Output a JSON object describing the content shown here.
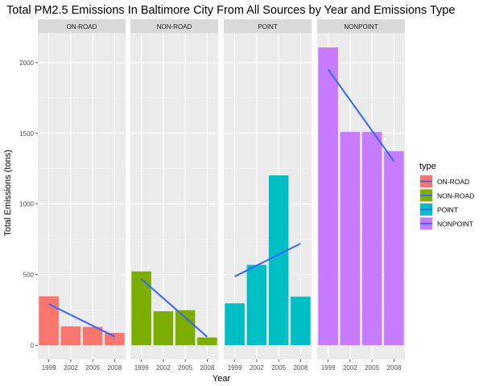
{
  "chart_data": {
    "type": "bar",
    "title": "Total PM2.5 Emissions In Baltimore City From All Sources by Year and Emissions Type",
    "xlabel": "Year",
    "ylabel": "Total Emissions (tons)",
    "categories": [
      "1999",
      "2002",
      "2005",
      "2008"
    ],
    "x_numeric": [
      1999,
      2002,
      2005,
      2008
    ],
    "ylim": [
      -100,
      2210
    ],
    "yticks": [
      0,
      500,
      1000,
      1500,
      2000
    ],
    "grid": true,
    "legend": {
      "title": "type",
      "position": "right",
      "entries": [
        "ON-ROAD",
        "NON-ROAD",
        "POINT",
        "NONPOINT"
      ]
    },
    "trend_line_color": "#3366ff",
    "series": [
      {
        "name": "ON-ROAD",
        "color": "#f8766d",
        "values": [
          346.8,
          134.3,
          130.4,
          88.3
        ],
        "trend": [
          292,
          62
        ]
      },
      {
        "name": "NON-ROAD",
        "color": "#7cae00",
        "values": [
          522.9,
          241.0,
          248.9,
          55.8
        ],
        "trend": [
          470,
          60
        ]
      },
      {
        "name": "POINT",
        "color": "#00bfc4",
        "values": [
          296.8,
          569.3,
          1202.5,
          344.9
        ],
        "trend": [
          487,
          720
        ]
      },
      {
        "name": "NONPOINT",
        "color": "#c77cff",
        "values": [
          2107.6,
          1509.5,
          1509.5,
          1373.2
        ],
        "trend": [
          1952,
          1302
        ]
      }
    ]
  }
}
